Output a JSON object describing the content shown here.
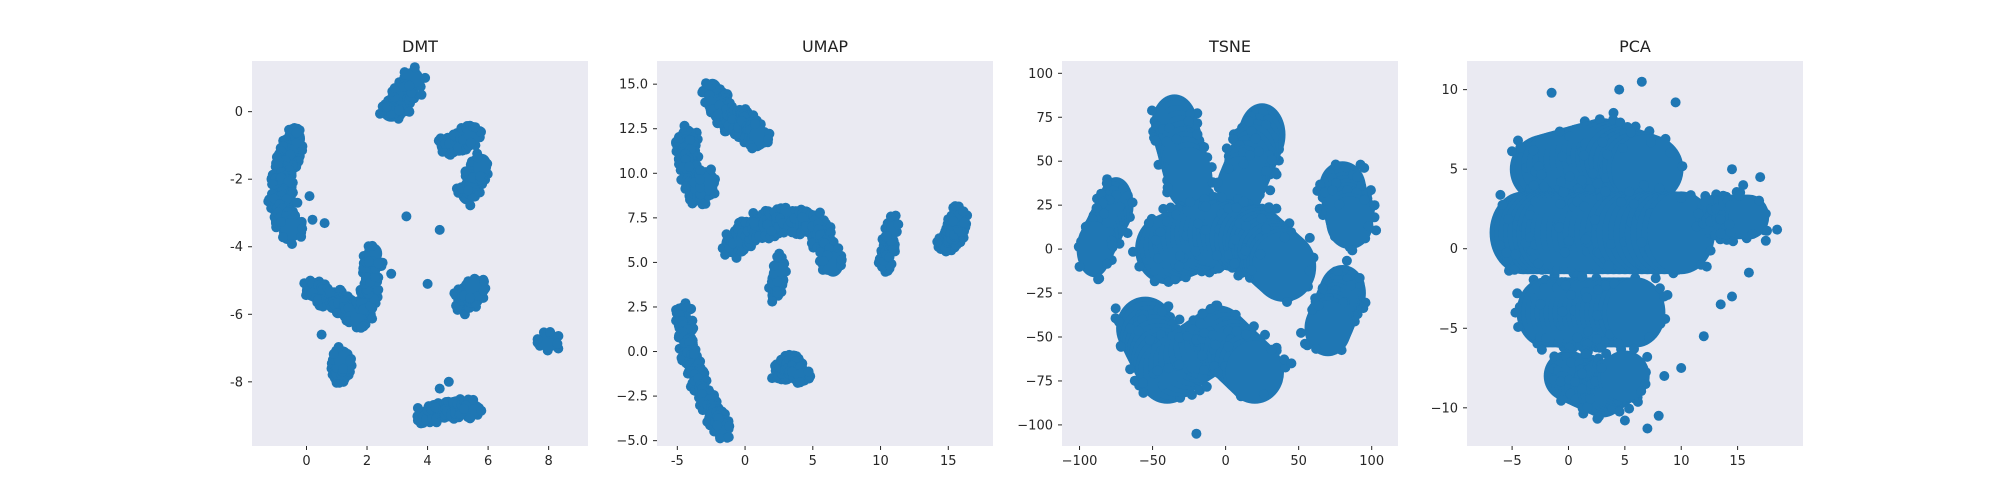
{
  "figure": {
    "background": "#ffffff"
  },
  "chart_data": [
    {
      "type": "scatter",
      "title": "DMT",
      "xlim": [
        -1.8,
        9.3
      ],
      "ylim": [
        -9.9,
        1.5
      ],
      "xticks": [
        0,
        2,
        4,
        6,
        8
      ],
      "yticks": [
        0,
        -2,
        -4,
        -6,
        -8
      ],
      "grid": false,
      "color": "#1f77b4",
      "plot_bg": "#eaeaf2",
      "clusters": [
        {
          "x": [
            -0.4,
            -0.8,
            -0.9,
            -0.5
          ],
          "y": [
            -0.8,
            -1.8,
            -2.8,
            -3.5
          ],
          "sx": 0.35,
          "sy": 0.35
        },
        {
          "x": [
            2.8,
            3.5
          ],
          "y": [
            0.0,
            1.0
          ],
          "sx": 0.35,
          "sy": 0.3
        },
        {
          "x": [
            4.6,
            5.5
          ],
          "y": [
            -1.0,
            -0.7
          ],
          "sx": 0.3,
          "sy": 0.28
        },
        {
          "x": [
            5.3,
            5.8
          ],
          "y": [
            -2.4,
            -1.6
          ],
          "sx": 0.3,
          "sy": 0.35
        },
        {
          "x": [
            0.2,
            1.0,
            1.8
          ],
          "y": [
            -5.3,
            -5.6,
            -6.1
          ],
          "sx": 0.35,
          "sy": 0.3
        },
        {
          "x": [
            2.0,
            2.2
          ],
          "y": [
            -5.7,
            -4.2
          ],
          "sx": 0.3,
          "sy": 0.3
        },
        {
          "x": [
            5.2,
            5.6
          ],
          "y": [
            -5.6,
            -5.2
          ],
          "sx": 0.35,
          "sy": 0.35
        },
        {
          "x": [
            1.1,
            1.2
          ],
          "y": [
            -7.7,
            -7.3
          ],
          "sx": 0.3,
          "sy": 0.35
        },
        {
          "x": [
            8.0
          ],
          "y": [
            -6.8
          ],
          "sx": 0.35,
          "sy": 0.3
        },
        {
          "x": [
            3.9,
            4.7,
            5.5
          ],
          "y": [
            -9.0,
            -8.8,
            -8.8
          ],
          "sx": 0.35,
          "sy": 0.25
        }
      ],
      "outliers": [
        [
          3.8,
          0.5
        ],
        [
          3.4,
          0.0
        ],
        [
          0.1,
          -2.5
        ],
        [
          -0.3,
          -2.7
        ],
        [
          0.2,
          -3.2
        ],
        [
          0.6,
          -3.3
        ],
        [
          3.3,
          -3.1
        ],
        [
          4.4,
          -3.5
        ],
        [
          4.0,
          -5.1
        ],
        [
          2.8,
          -4.8
        ],
        [
          0.5,
          -6.6
        ],
        [
          1.8,
          -6.4
        ],
        [
          4.4,
          -8.2
        ],
        [
          4.7,
          -8.0
        ]
      ]
    },
    {
      "type": "scatter",
      "title": "UMAP",
      "xlim": [
        -6.5,
        18.3
      ],
      "ylim": [
        -5.3,
        16.3
      ],
      "xticks": [
        -5,
        0,
        5,
        10,
        15
      ],
      "yticks": [
        15.0,
        12.5,
        10.0,
        7.5,
        5.0,
        2.5,
        0.0,
        -2.5,
        -5.0
      ],
      "ytick_labels": [
        "15.0",
        "12.5",
        "10.0",
        "7.5",
        "5.0",
        "2.5",
        "0.0",
        "−2.5",
        "−5.0"
      ],
      "grid": false,
      "color": "#1f77b4",
      "plot_bg": "#eaeaf2",
      "clusters": [
        {
          "x": [
            -4.3,
            -4.2,
            -3.4,
            -2.8
          ],
          "y": [
            12.0,
            10.3,
            8.9,
            9.5
          ],
          "sx": 0.7,
          "sy": 0.7
        },
        {
          "x": [
            -2.4,
            -1.5,
            -0.2,
            1.0
          ],
          "y": [
            14.6,
            13.2,
            12.8,
            12.0
          ],
          "sx": 0.7,
          "sy": 0.7
        },
        {
          "x": [
            -1.0,
            0.8,
            3.2,
            5.3,
            6.5
          ],
          "y": [
            6.0,
            7.0,
            7.4,
            7.0,
            4.9
          ],
          "sx": 0.75,
          "sy": 0.7
        },
        {
          "x": [
            2.3,
            2.6
          ],
          "y": [
            3.6,
            4.8
          ],
          "sx": 0.45,
          "sy": 0.6
        },
        {
          "x": [
            10.3,
            10.9
          ],
          "y": [
            5.0,
            6.9
          ],
          "sx": 0.45,
          "sy": 0.7
        },
        {
          "x": [
            14.8,
            15.6,
            15.7
          ],
          "y": [
            6.2,
            6.5,
            7.6
          ],
          "sx": 0.6,
          "sy": 0.55
        },
        {
          "x": [
            -4.6,
            -4.2,
            -3.3,
            -2.3,
            -1.6
          ],
          "y": [
            2.2,
            0.0,
            -2.0,
            -3.6,
            -4.3
          ],
          "sx": 0.55,
          "sy": 0.55
        },
        {
          "x": [
            2.6,
            3.4,
            4.2
          ],
          "y": [
            -1.2,
            -0.6,
            -1.4
          ],
          "sx": 0.6,
          "sy": 0.45
        }
      ],
      "outliers": [
        [
          1.7,
          11.9
        ],
        [
          -1.2,
          -4.8
        ],
        [
          2.0,
          2.8
        ]
      ]
    },
    {
      "type": "scatter",
      "title": "TSNE",
      "xlim": [
        -112,
        118
      ],
      "ylim": [
        -112,
        107
      ],
      "xticks": [
        -100,
        -50,
        0,
        50,
        100
      ],
      "xtick_labels": [
        "−100",
        "−50",
        "0",
        "50",
        "100"
      ],
      "yticks": [
        100,
        75,
        50,
        25,
        0,
        -25,
        -50,
        -75,
        -100
      ],
      "ytick_labels": [
        "100",
        "75",
        "50",
        "25",
        "0",
        "−25",
        "−50",
        "−75",
        "−100"
      ],
      "grid": false,
      "color": "#1f77b4",
      "plot_bg": "#eaeaf2",
      "clusters": [
        {
          "x": [
            -75,
            -90
          ],
          "y": [
            25,
            0
          ],
          "sx": 12,
          "sy": 16
        },
        {
          "x": [
            -35,
            -25
          ],
          "y": [
            70,
            40
          ],
          "sx": 16,
          "sy": 18
        },
        {
          "x": [
            25,
            10
          ],
          "y": [
            65,
            35
          ],
          "sx": 16,
          "sy": 18
        },
        {
          "x": [
            80,
            85
          ],
          "y": [
            35,
            15
          ],
          "sx": 16,
          "sy": 15
        },
        {
          "x": [
            -40,
            -10,
            20,
            40
          ],
          "y": [
            0,
            10,
            5,
            -10
          ],
          "sx": 22,
          "sy": 20
        },
        {
          "x": [
            -55,
            -40,
            -5,
            20
          ],
          "y": [
            -45,
            -70,
            -50,
            -70
          ],
          "sx": 20,
          "sy": 18
        },
        {
          "x": [
            80,
            70
          ],
          "y": [
            -25,
            -45
          ],
          "sx": 16,
          "sy": 16
        }
      ],
      "outliers": [
        [
          -100,
          -10
        ],
        [
          102,
          25
        ],
        [
          -20,
          -105
        ],
        [
          45,
          -65
        ]
      ]
    },
    {
      "type": "scatter",
      "title": "PCA",
      "xlim": [
        -9.0,
        20.8
      ],
      "ylim": [
        -12.4,
        11.8
      ],
      "xticks": [
        -5,
        0,
        5,
        10,
        15
      ],
      "xtick_labels": [
        "−5",
        "0",
        "5",
        "10",
        "15"
      ],
      "yticks": [
        10,
        5,
        0,
        -5,
        -10
      ],
      "ytick_labels": [
        "10",
        "5",
        "0",
        "−5",
        "−10"
      ],
      "grid": false,
      "color": "#1f77b4",
      "plot_bg": "#eaeaf2",
      "clusters": [
        {
          "x": [
            -2,
            3,
            7
          ],
          "y": [
            5,
            6,
            5
          ],
          "sx": 3.2,
          "sy": 2.2
        },
        {
          "x": [
            -4,
            0,
            5,
            10
          ],
          "y": [
            1,
            1,
            1,
            1
          ],
          "sx": 3.0,
          "sy": 2.6
        },
        {
          "x": [
            -2,
            2,
            6
          ],
          "y": [
            -4,
            -4,
            -4
          ],
          "sx": 2.6,
          "sy": 2.2
        },
        {
          "x": [
            0,
            3,
            5
          ],
          "y": [
            -8,
            -9,
            -8
          ],
          "sx": 2.2,
          "sy": 1.6
        },
        {
          "x": [
            13,
            16
          ],
          "y": [
            2,
            2
          ],
          "sx": 1.8,
          "sy": 1.4
        }
      ],
      "outliers": [
        [
          18.5,
          1.2
        ],
        [
          17.5,
          0.5
        ],
        [
          16,
          -1.5
        ],
        [
          14.5,
          -3
        ],
        [
          13.5,
          -3.5
        ],
        [
          12,
          -5.5
        ],
        [
          10,
          -7.5
        ],
        [
          8.5,
          -8
        ],
        [
          8,
          -10.5
        ],
        [
          7,
          -11.3
        ],
        [
          5,
          -10.8
        ],
        [
          9.5,
          9.2
        ],
        [
          6.5,
          10.5
        ],
        [
          4.5,
          10
        ],
        [
          -1.5,
          9.8
        ],
        [
          14.5,
          5
        ],
        [
          15.5,
          4
        ],
        [
          17,
          4.5
        ]
      ]
    }
  ]
}
